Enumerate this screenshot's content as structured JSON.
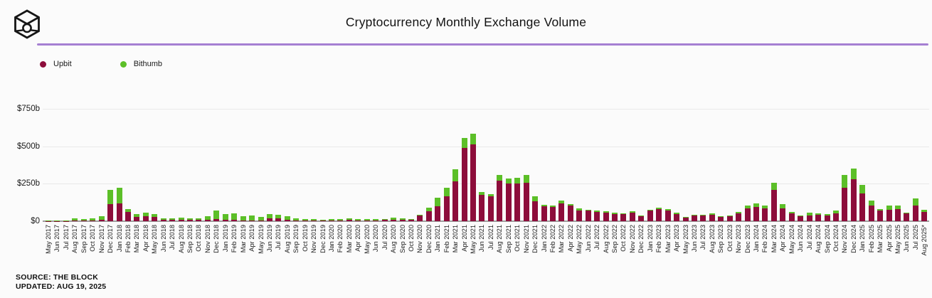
{
  "header": {
    "title": "Cryptocurrency Monthly Exchange Volume"
  },
  "legend": {
    "items": [
      {
        "label": "Upbit",
        "color": "#8D0D3B"
      },
      {
        "label": "Bithumb",
        "color": "#5CBF28"
      }
    ]
  },
  "footer": {
    "source": "SOURCE: THE BLOCK",
    "updated": "UPDATED: AUG 19, 2025"
  },
  "colors": {
    "divider": "#A57FD2",
    "gridline": "#E9E9E9",
    "axis_line": "#9E9E9E",
    "upbit": "#8D0D3B",
    "bithumb": "#5CBF28"
  },
  "chart_data": {
    "type": "bar",
    "stacked": true,
    "title": "Cryptocurrency Monthly Exchange Volume",
    "unit": "USD billions",
    "ylim": [
      0,
      750
    ],
    "y_ticks": [
      "$750b",
      "$500b",
      "$250b",
      "$0"
    ],
    "grid": true,
    "legend_position": "top-left",
    "categories": [
      "May 2017",
      "Jun 2017",
      "Jul 2017",
      "Aug 2017",
      "Sep 2017",
      "Oct 2017",
      "Nov 2017",
      "Dec 2017",
      "Jan 2018",
      "Feb 2018",
      "Mar 2018",
      "Apr 2018",
      "May 2018",
      "Jun 2018",
      "Jul 2018",
      "Aug 2018",
      "Sep 2018",
      "Oct 2018",
      "Nov 2018",
      "Dec 2018",
      "Jan 2019",
      "Feb 2019",
      "Mar 2019",
      "Apr 2019",
      "May 2019",
      "Jun 2019",
      "Jul 2019",
      "Aug 2019",
      "Sep 2019",
      "Oct 2019",
      "Nov 2019",
      "Dec 2019",
      "Jan 2020",
      "Feb 2020",
      "Mar 2020",
      "Apr 2020",
      "May 2020",
      "Jun 2020",
      "Jul 2020",
      "Aug 2020",
      "Sep 2020",
      "Oct 2020",
      "Nov 2020",
      "Dec 2020",
      "Jan 2021",
      "Feb 2021",
      "Mar 2021",
      "Apr 2021",
      "May 2021",
      "Jun 2021",
      "Jul 2021",
      "Aug 2021",
      "Sep 2021",
      "Oct 2021",
      "Nov 2021",
      "Dec 2021",
      "Jan 2022",
      "Feb 2022",
      "Mar 2022",
      "Apr 2022",
      "May 2022",
      "Jun 2022",
      "Jul 2022",
      "Aug 2022",
      "Sep 2022",
      "Oct 2022",
      "Nov 2022",
      "Dec 2022",
      "Jan 2023",
      "Feb 2023",
      "Mar 2023",
      "Apr 2023",
      "May 2023",
      "Jun 2023",
      "Jul 2023",
      "Aug 2023",
      "Sep 2023",
      "Oct 2023",
      "Nov 2023",
      "Dec 2023",
      "Jan 2024",
      "Feb 2024",
      "Mar 2024",
      "Apr 2024",
      "May 2024",
      "Jun 2024",
      "Jul 2024",
      "Aug 2024",
      "Sep 2024",
      "Oct 2024",
      "Nov 2024",
      "Dec 2024",
      "Jan 2025",
      "Feb 2025",
      "Mar 2025",
      "Apr 2025",
      "May 2025",
      "Jun 2025",
      "Jul 2025",
      "Aug 2025*"
    ],
    "series": [
      {
        "name": "Upbit",
        "color": "#8D0D3B",
        "values": [
          1,
          1,
          2,
          5,
          4,
          5,
          12,
          115,
          120,
          60,
          30,
          32,
          28,
          12,
          11,
          9,
          8,
          9,
          8,
          13,
          8,
          8,
          6,
          7,
          6,
          19,
          18,
          12,
          7,
          6,
          5,
          4,
          5,
          7,
          9,
          6,
          6,
          7,
          8,
          12,
          11,
          8,
          38,
          68,
          100,
          168,
          265,
          490,
          513,
          174,
          165,
          270,
          250,
          250,
          256,
          135,
          98,
          93,
          121,
          103,
          73,
          70,
          60,
          58,
          48,
          46,
          55,
          34,
          70,
          80,
          72,
          48,
          26,
          40,
          37,
          44,
          30,
          32,
          52,
          84,
          95,
          85,
          208,
          88,
          51,
          34,
          40,
          42,
          40,
          53,
          225,
          281,
          187,
          107,
          70,
          77,
          79,
          51,
          104,
          60
        ]
      },
      {
        "name": "Bithumb",
        "color": "#5CBF28",
        "values": [
          2,
          3,
          5,
          13,
          11,
          13,
          23,
          95,
          103,
          19,
          17,
          25,
          19,
          8,
          8,
          13,
          11,
          11,
          25,
          57,
          40,
          43,
          29,
          33,
          23,
          29,
          27,
          23,
          12,
          9,
          7,
          7,
          7,
          9,
          9,
          7,
          6,
          7,
          8,
          10,
          8,
          5,
          5,
          22,
          55,
          57,
          80,
          67,
          72,
          19,
          15,
          37,
          37,
          38,
          52,
          30,
          12,
          12,
          19,
          12,
          12,
          8,
          10,
          7,
          7,
          7,
          10,
          4,
          7,
          8,
          8,
          7,
          4,
          5,
          5,
          6,
          5,
          6,
          12,
          20,
          25,
          19,
          48,
          24,
          13,
          6,
          16,
          11,
          8,
          19,
          85,
          69,
          53,
          29,
          13,
          27,
          25,
          8,
          48,
          15
        ]
      }
    ]
  }
}
